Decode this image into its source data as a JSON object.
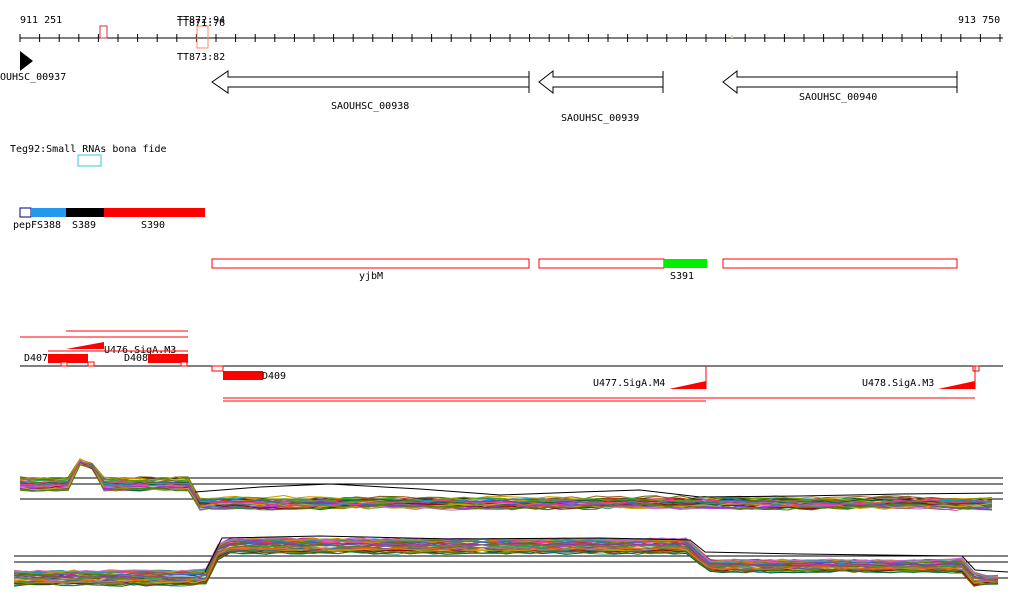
{
  "coords": {
    "start": "911 251",
    "end": "913 750"
  },
  "terminators": {
    "top_a": "TT872:94",
    "top_b": "TT871:76",
    "bottom": "TT873:82"
  },
  "genes": [
    {
      "label": "OUHSC_00937",
      "direction": "forward"
    },
    {
      "label": "SAOUHSC_00938",
      "direction": "reverse"
    },
    {
      "label": "SAOUHSC_00939",
      "direction": "reverse"
    },
    {
      "label": "SAOUHSC_00940",
      "direction": "reverse"
    }
  ],
  "srna_track": {
    "label": "Teg92:Small RNAs bona fide"
  },
  "features": {
    "pepF": "pepF",
    "s388": "S388",
    "s389": "S389",
    "s390": "S390",
    "yjbM": "yjbM",
    "s391": "S391",
    "d407": "D407",
    "d408": "D408",
    "d409": "D409",
    "u476": "U476.SigA.M3",
    "u477": "U477.SigA.M4",
    "u478": "U478.SigA.M3"
  },
  "colors": {
    "red": "#ff0000",
    "black": "#000000",
    "blue": "#2299ee",
    "navy": "#000080",
    "green": "#00ee00",
    "cyan": "#33cccc",
    "orange": "#ff8866"
  }
}
